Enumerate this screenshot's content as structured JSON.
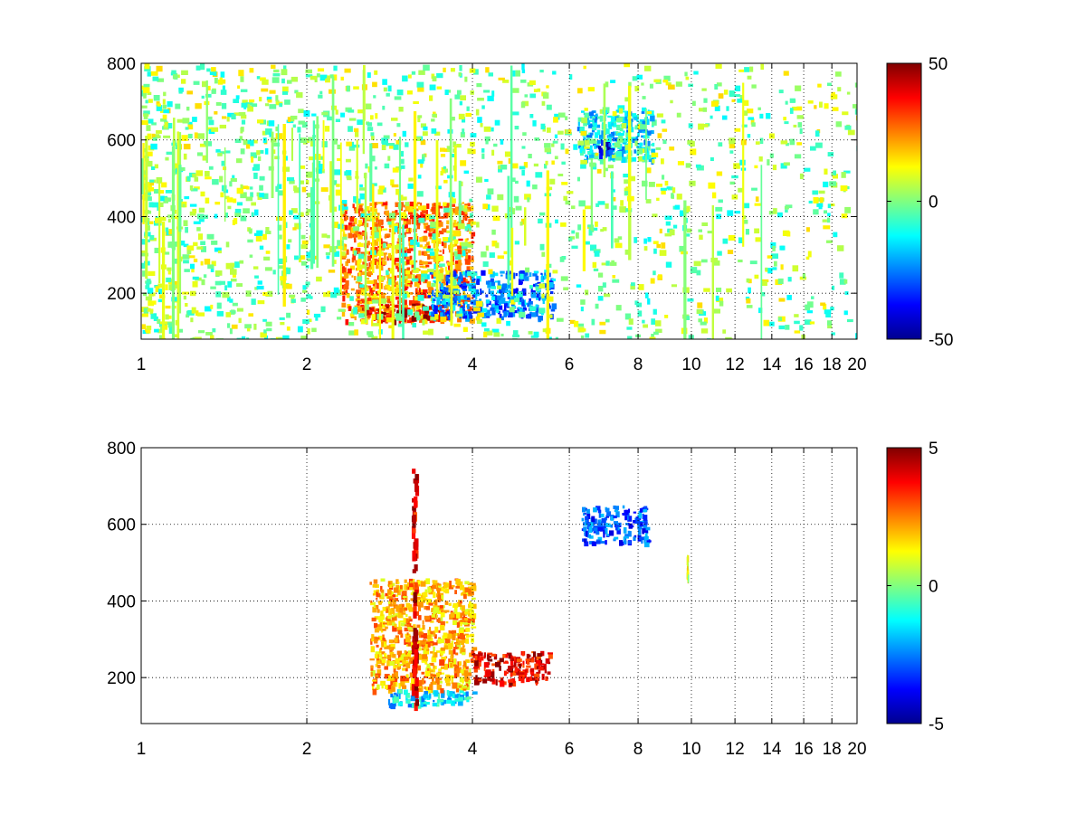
{
  "chart_data": [
    {
      "type": "heatmap",
      "title": "",
      "xlabel": "",
      "ylabel": "",
      "xlim": [
        1,
        20
      ],
      "ylim": [
        80,
        800
      ],
      "xscale": "log",
      "x_ticks": [
        1,
        2,
        4,
        6,
        8,
        10,
        12,
        14,
        16,
        18,
        20
      ],
      "x_tick_labels": [
        "1",
        "2",
        "4",
        "6",
        "8",
        "10",
        "12",
        "14",
        "16",
        "18",
        "20"
      ],
      "y_ticks": [
        200,
        400,
        600,
        800
      ],
      "y_tick_labels": [
        "200",
        "400",
        "600",
        "800"
      ],
      "grid": true,
      "colormap": "jet",
      "clim": [
        -50,
        50
      ],
      "colorbar": {
        "placement": "right",
        "ticks": [
          -50,
          0,
          50
        ],
        "tick_labels": [
          "-50",
          "0",
          "50"
        ]
      },
      "features": [
        {
          "x_range": [
            2.3,
            4.0
          ],
          "y_range": [
            130,
            440
          ],
          "value": 25
        },
        {
          "x_range": [
            2.5,
            3.6
          ],
          "y_range": [
            130,
            175
          ],
          "value": 42
        },
        {
          "x_range": [
            3.3,
            5.6
          ],
          "y_range": [
            140,
            260
          ],
          "value": -25
        },
        {
          "x_range": [
            6.2,
            8.5
          ],
          "y_range": [
            550,
            680
          ],
          "value": -15
        },
        {
          "x_range": [
            6.7,
            7.1
          ],
          "y_range": [
            560,
            600
          ],
          "value": -35
        },
        {
          "x_range": [
            1.0,
            20.0
          ],
          "y_range": [
            80,
            800
          ],
          "value": 5
        }
      ]
    },
    {
      "type": "heatmap",
      "title": "",
      "xlabel": "",
      "ylabel": "",
      "xlim": [
        1,
        20
      ],
      "ylim": [
        80,
        800
      ],
      "xscale": "log",
      "x_ticks": [
        1,
        2,
        4,
        6,
        8,
        10,
        12,
        14,
        16,
        18,
        20
      ],
      "x_tick_labels": [
        "1",
        "2",
        "4",
        "6",
        "8",
        "10",
        "12",
        "14",
        "16",
        "18",
        "20"
      ],
      "y_ticks": [
        200,
        400,
        600,
        800
      ],
      "y_tick_labels": [
        "200",
        "400",
        "600",
        "800"
      ],
      "grid": true,
      "colormap": "jet",
      "clim": [
        -5,
        5
      ],
      "colorbar": {
        "placement": "right",
        "ticks": [
          -5,
          0,
          5
        ],
        "tick_labels": [
          "-5",
          "0",
          "5"
        ]
      },
      "features": [
        {
          "x_range": [
            2.8,
            4.0
          ],
          "y_range": [
            130,
            170
          ],
          "value": -1.5
        },
        {
          "x_range": [
            2.6,
            4.0
          ],
          "y_range": [
            170,
            460
          ],
          "value": 2
        },
        {
          "x_range": [
            3.1,
            3.15
          ],
          "y_range": [
            130,
            750
          ],
          "value": 4
        },
        {
          "x_range": [
            4.0,
            5.5
          ],
          "y_range": [
            190,
            270
          ],
          "value": 4
        },
        {
          "x_range": [
            6.3,
            8.3
          ],
          "y_range": [
            555,
            650
          ],
          "value": -3
        },
        {
          "x_range": [
            9.8,
            9.85
          ],
          "y_range": [
            460,
            520
          ],
          "value": 1
        }
      ]
    }
  ]
}
